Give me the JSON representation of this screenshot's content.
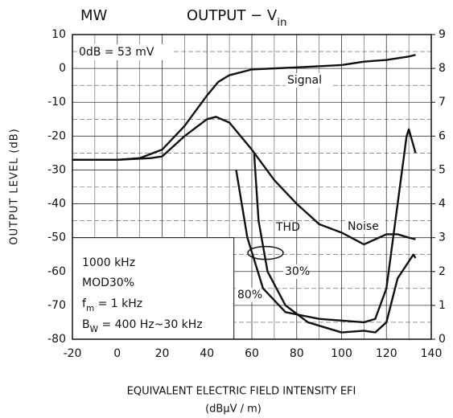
{
  "chart_data": {
    "type": "line",
    "corner_label": "MW",
    "title": [
      "OUTPUT  −  V",
      "in"
    ],
    "ylabel": "OUTPUT LEVEL  (dB)",
    "xlabel": "EQUIVALENT ELECTRIC FIELD INTENSITY    EFI",
    "xlabel_unit": "(dBμV / m)",
    "xlim": [
      -20,
      140
    ],
    "xticks": [
      -20,
      0,
      20,
      40,
      60,
      80,
      100,
      120,
      140
    ],
    "xminor": [
      -10,
      10,
      30,
      50,
      70,
      90,
      110,
      130
    ],
    "ylim": [
      -80,
      10
    ],
    "yticks": [
      -80,
      -70,
      -60,
      -50,
      -40,
      -30,
      -20,
      -10,
      0,
      10
    ],
    "yminor": [
      -75,
      -65,
      -55,
      -45,
      -35,
      -25,
      -15,
      -5,
      5
    ],
    "y2lim": [
      0,
      9
    ],
    "y2ticks": [
      0,
      1,
      2,
      3,
      4,
      5,
      6,
      7,
      8,
      9
    ],
    "grid": true,
    "series": [
      {
        "name": "Signal",
        "color": "#111111",
        "x": [
          -20,
          0,
          10,
          20,
          30,
          40,
          45,
          50,
          60,
          80,
          100,
          110,
          120,
          130,
          133
        ],
        "values": [
          -27,
          -27,
          -26.5,
          -24,
          -17,
          -8,
          -4,
          -2,
          -0.3,
          0.3,
          1,
          2,
          2.5,
          3.5,
          4
        ]
      },
      {
        "name": "Noise",
        "color": "#111111",
        "x": [
          -20,
          0,
          15,
          20,
          30,
          40,
          44,
          50,
          60,
          70,
          80,
          90,
          100,
          110,
          115,
          120,
          125,
          130,
          133
        ],
        "values": [
          -27,
          -27,
          -26.5,
          -26,
          -20,
          -15,
          -14.3,
          -16,
          -24,
          -33,
          -40,
          -46,
          -48.5,
          -52,
          -50.5,
          -49,
          -49,
          -50,
          -50.5
        ]
      },
      {
        "name": "30%",
        "color": "#111111",
        "x": [
          61,
          63,
          67,
          75,
          85,
          100,
          110,
          115,
          120,
          125,
          130,
          132,
          133
        ],
        "values": [
          -25,
          -45,
          -60,
          -70,
          -75,
          -78,
          -77.5,
          -78,
          -75,
          -62,
          -57,
          -55,
          -56
        ]
      },
      {
        "name": "80%",
        "color": "#111111",
        "x": [
          53,
          58,
          65,
          75,
          90,
          110,
          115,
          120,
          125,
          129,
          130,
          133
        ],
        "values": [
          -30,
          -50,
          -65,
          -72,
          -74,
          -75,
          -74,
          -65,
          -40,
          -20,
          -18,
          -25
        ]
      }
    ],
    "annotations": [
      "0dB = 53 mV",
      "THD"
    ],
    "box_lines": [
      [
        "1000 kHz"
      ],
      [
        "MOD30%"
      ],
      [
        "f",
        "m",
        " = 1 kHz"
      ],
      [
        "B",
        "W",
        " = 400 Hz~30 kHz"
      ]
    ]
  }
}
